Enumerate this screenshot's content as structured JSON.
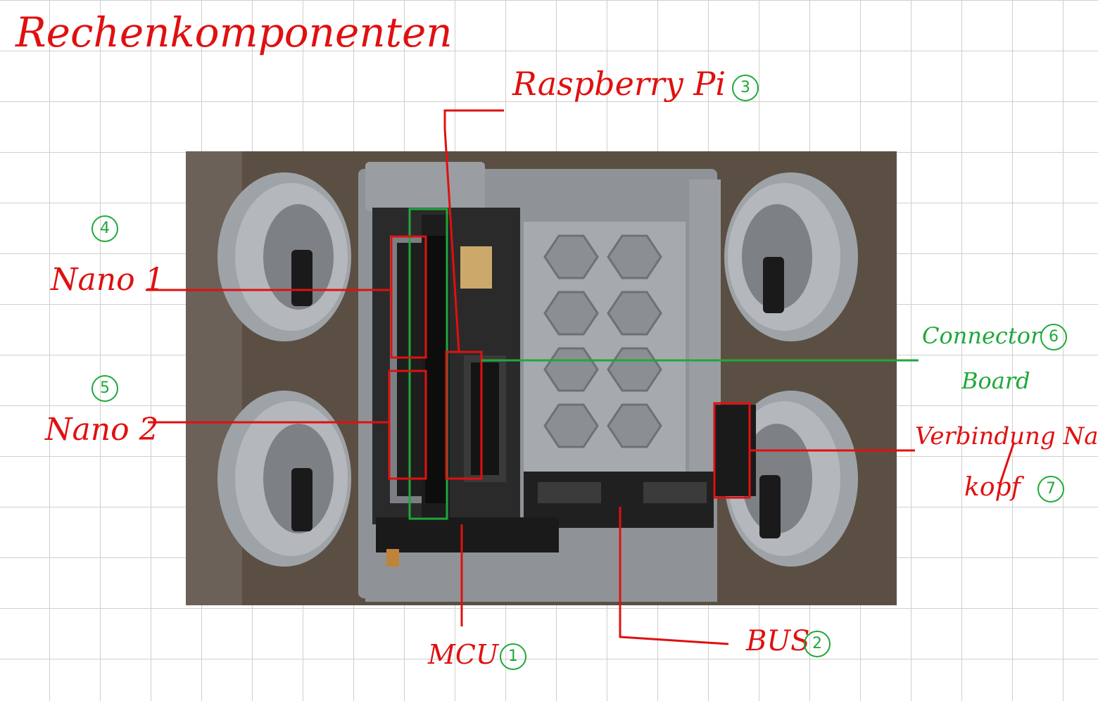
{
  "title": "Rechenkomponenten",
  "labels": {
    "raspberry_pi": "Raspberry Pi",
    "nano1": "Nano 1",
    "nano2": "Nano 2",
    "connector_board_line1": "Connector",
    "connector_board_line2": "Board",
    "verbindung_line1": "Verbindung Nano",
    "verbindung_line2": "kopf",
    "mcu": "MCU",
    "bus": "BUS"
  },
  "numbers": {
    "mcu": "1",
    "bus": "2",
    "raspberry_pi": "3",
    "nano1": "4",
    "nano2": "5",
    "connector_board": "6",
    "verbindung": "7"
  },
  "colors": {
    "annotation_red": "#e01010",
    "annotation_green": "#1fa83a",
    "grid": "#cfcfcf"
  }
}
